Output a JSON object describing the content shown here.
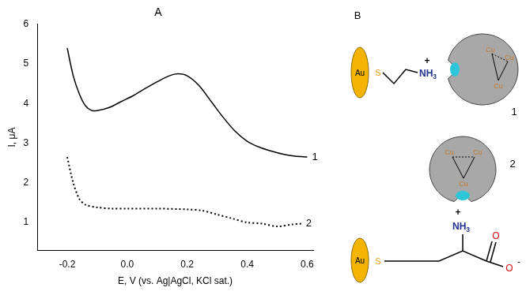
{
  "chart_data": {
    "type": "line",
    "title": "A",
    "x_label": "E, V (vs. Ag|AgCl, KCl sat.)",
    "y_label": "I, μA",
    "xlim": [
      -0.3,
      0.62
    ],
    "xticks": [
      -0.2,
      {
        "value": 0,
        "label": "0.0"
      },
      0.2,
      0.4,
      0.6
    ],
    "ylim": [
      0.3,
      6
    ],
    "yticks": [
      1,
      2,
      3,
      4,
      5,
      6
    ],
    "grid": false,
    "series": [
      {
        "name": "1",
        "color": "#000000",
        "line_style": "solid",
        "marker": "none",
        "x": [
          -0.2,
          -0.18,
          -0.16,
          -0.14,
          -0.12,
          -0.1,
          -0.06,
          -0.02,
          0.02,
          0.06,
          0.1,
          0.14,
          0.17,
          0.2,
          0.24,
          0.28,
          0.32,
          0.36,
          0.4,
          0.44,
          0.48,
          0.52,
          0.56,
          0.6
        ],
        "values": [
          5.4,
          4.7,
          4.25,
          3.95,
          3.83,
          3.82,
          3.9,
          4.05,
          4.2,
          4.38,
          4.55,
          4.7,
          4.75,
          4.7,
          4.45,
          4.05,
          3.65,
          3.3,
          3.05,
          2.9,
          2.8,
          2.72,
          2.67,
          2.65
        ]
      },
      {
        "name": "2",
        "color": "#000000",
        "line_style": "dotted",
        "marker": "none",
        "x": [
          -0.2,
          -0.18,
          -0.16,
          -0.14,
          -0.1,
          -0.05,
          0.0,
          0.1,
          0.2,
          0.25,
          0.3,
          0.35,
          0.4,
          0.45,
          0.5,
          0.55,
          0.58
        ],
        "values": [
          2.65,
          2.0,
          1.6,
          1.45,
          1.38,
          1.35,
          1.35,
          1.35,
          1.33,
          1.3,
          1.2,
          1.1,
          1.0,
          0.97,
          0.9,
          0.95,
          0.97
        ]
      }
    ]
  },
  "diagram": {
    "label": "B",
    "items": [
      {
        "label": "1",
        "gold": "Au",
        "sulfur": "S",
        "amine": "NH3",
        "charge": "+",
        "copper": [
          "Cu",
          "Cu",
          "Cu"
        ]
      },
      {
        "label": "2",
        "gold": "Au",
        "sulfur": "S",
        "amine": "NH3",
        "charge": "+",
        "copper": [
          "Cu",
          "Cu",
          "Cu"
        ],
        "carboxylate_oxygen": [
          "O",
          "O"
        ],
        "carboxylate_charge": "-"
      }
    ]
  }
}
